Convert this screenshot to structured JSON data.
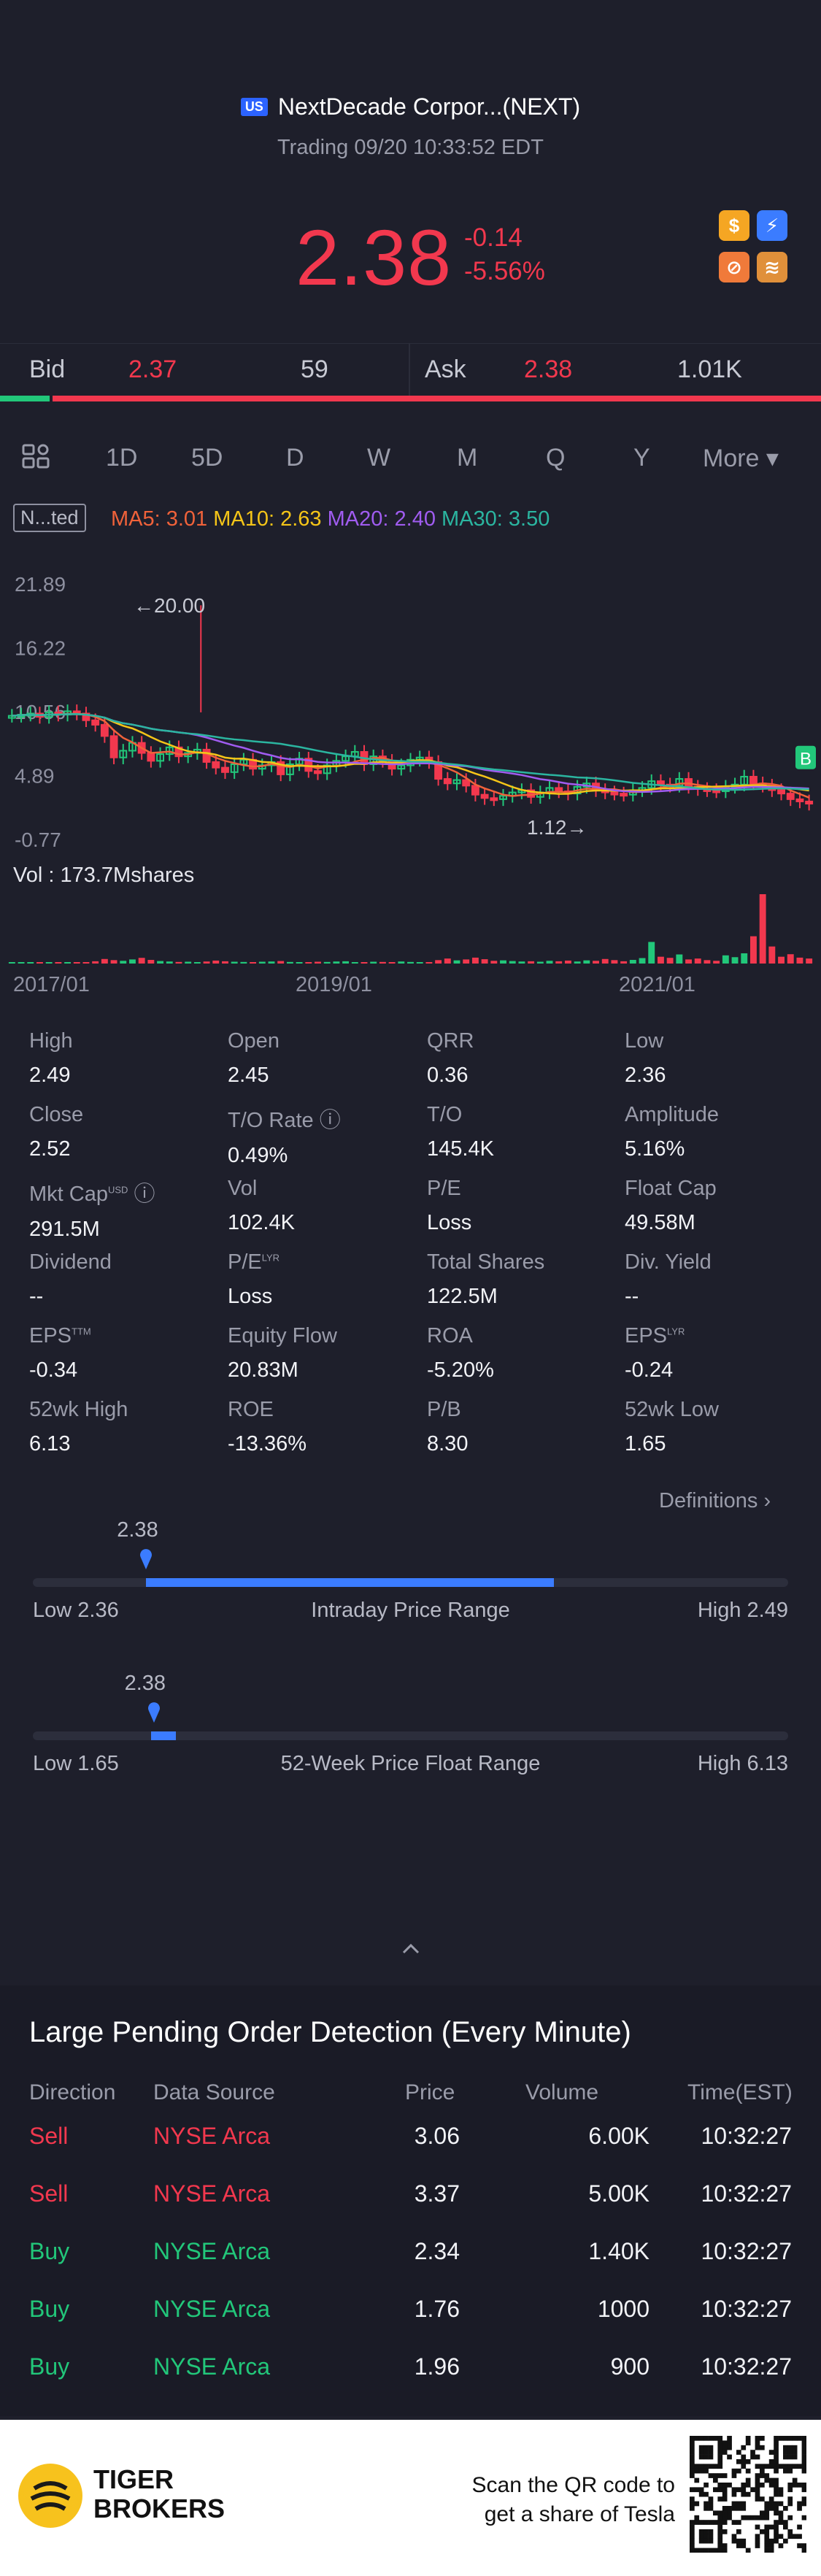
{
  "header": {
    "market_flag": "US",
    "name": "NextDecade Corpor...(NEXT)",
    "status": "Trading 09/20 10:33:52 EDT",
    "price": "2.38",
    "change": "-0.14",
    "change_pct": "-5.56%"
  },
  "quote_icons": [
    "dollar-icon",
    "flash-icon",
    "chart-badge-icon",
    "layers-icon"
  ],
  "bidask": {
    "bid_label": "Bid",
    "bid_price": "2.37",
    "bid_size": "59",
    "ask_label": "Ask",
    "ask_price": "2.38",
    "ask_size": "1.01K",
    "bid_ratio": 0.06
  },
  "tabs": [
    "1D",
    "5D",
    "D",
    "W",
    "M",
    "Q",
    "Y",
    "More ▾"
  ],
  "active_tab": "M",
  "indicator": {
    "toggle": "N...ted",
    "ma5": "MA5: 3.01",
    "ma10": "MA10: 2.63",
    "ma20": "MA20: 2.40",
    "ma30": "MA30: 3.50"
  },
  "chart_data": {
    "type": "candlestick",
    "y_ticks": [
      "21.89",
      "16.22",
      "10.56",
      "4.89",
      "-0.77"
    ],
    "x_ticks": [
      "2017/01",
      "2019/01",
      "2021/01"
    ],
    "ylim": [
      -0.77,
      21.89
    ],
    "high_marker": "20.00",
    "low_marker": "1.12",
    "last_badge": "B",
    "volume_label": "Vol  : 173.7Mshares",
    "close_series": [
      10.2,
      10.3,
      10.4,
      10.1,
      10.5,
      10.3,
      10.6,
      10.4,
      9.8,
      9.4,
      8.4,
      6.5,
      7.1,
      7.8,
      6.9,
      6.2,
      6.8,
      7.4,
      6.6,
      6.9,
      7.2,
      6.1,
      5.6,
      5.2,
      5.9,
      6.3,
      5.5,
      5.8,
      6.1,
      5.0,
      5.9,
      6.4,
      5.3,
      5.1,
      5.8,
      6.2,
      6.6,
      7.0,
      5.9,
      6.6,
      6.2,
      5.5,
      5.8,
      6.3,
      6.5,
      6.1,
      4.6,
      4.2,
      4.5,
      4.0,
      3.2,
      2.9,
      2.8,
      3.1,
      3.4,
      3.6,
      3.0,
      3.4,
      3.8,
      3.5,
      3.3,
      3.9,
      4.2,
      3.6,
      3.4,
      3.3,
      3.2,
      3.6,
      3.8,
      4.4,
      4.1,
      4.0,
      4.6,
      3.9,
      3.7,
      3.6,
      3.5,
      3.9,
      4.1,
      4.8,
      4.2,
      4.0,
      3.6,
      3.3,
      2.8,
      2.6,
      2.4
    ],
    "volumes": [
      0.3,
      0.2,
      0.4,
      0.3,
      0.5,
      0.3,
      0.2,
      0.4,
      0.6,
      1,
      2,
      1.5,
      1.2,
      1.8,
      2.5,
      1.6,
      1.1,
      0.9,
      0.7,
      0.8,
      0.6,
      0.9,
      1.3,
      1.0,
      0.8,
      0.7,
      0.6,
      0.8,
      0.9,
      1.1,
      0.7,
      0.6,
      0.5,
      0.8,
      0.7,
      0.9,
      1.0,
      0.6,
      0.5,
      0.8,
      0.7,
      0.6,
      0.9,
      0.7,
      0.5,
      0.6,
      1.5,
      2.2,
      1.4,
      1.8,
      2.6,
      1.9,
      1.2,
      1.4,
      1.1,
      0.9,
      1.0,
      0.8,
      1.2,
      1.0,
      1.3,
      0.9,
      1.4,
      1.2,
      2.0,
      1.5,
      1.0,
      1.6,
      2.4,
      9.5,
      3.0,
      2.5,
      4.0,
      1.8,
      2.2,
      1.5,
      1.2,
      3.6,
      2.8,
      4.5,
      12.0,
      30.5,
      7.5,
      3.0,
      4.1,
      2.6,
      2.2
    ]
  },
  "stats": [
    {
      "label": "High",
      "value": "2.49"
    },
    {
      "label": "Open",
      "value": "2.45"
    },
    {
      "label": "QRR",
      "value": "0.36"
    },
    {
      "label": "Low",
      "value": "2.36"
    },
    {
      "label": "Close",
      "value": "2.52"
    },
    {
      "label": "T/O Rate",
      "value": "0.49%"
    },
    {
      "label": "T/O",
      "value": "145.4K"
    },
    {
      "label": "Amplitude",
      "value": "5.16%"
    },
    {
      "label": "Mkt Cap",
      "value": "291.5M",
      "sup": "USD"
    },
    {
      "label": "Vol",
      "value": "102.4K"
    },
    {
      "label": "P/E",
      "value": "Loss"
    },
    {
      "label": "Float Cap",
      "value": "49.58M"
    },
    {
      "label": "Dividend",
      "value": "--"
    },
    {
      "label": "P/E",
      "value": "Loss",
      "sup": "LYR"
    },
    {
      "label": "Total Shares",
      "value": "122.5M"
    },
    {
      "label": "Div. Yield",
      "value": "--"
    },
    {
      "label": "EPS",
      "value": "-0.34",
      "sup": "TTM"
    },
    {
      "label": "Equity Flow",
      "value": "20.83M"
    },
    {
      "label": "ROA",
      "value": "-5.20%"
    },
    {
      "label": "EPS",
      "value": "-0.24",
      "sup": "LYR"
    },
    {
      "label": "52wk High",
      "value": "6.13"
    },
    {
      "label": "ROE",
      "value": "-13.36%"
    },
    {
      "label": "P/B",
      "value": "8.30"
    },
    {
      "label": "52wk Low",
      "value": "1.65"
    }
  ],
  "definitions_link": "Definitions",
  "intraday_range": {
    "current": "2.38",
    "low": "Low 2.36",
    "high": "High 2.49",
    "title": "Intraday Price Range",
    "marker_pos": 0.15,
    "fill_end": 0.69
  },
  "week52_range": {
    "current": "2.38",
    "low": "Low 1.65",
    "high": "High 6.13",
    "title": "52-Week Price Float Range",
    "marker_pos": 0.16
  },
  "detection": {
    "title": "Large Pending Order Detection (Every Minute)",
    "columns": [
      "Direction",
      "Data Source",
      "Price",
      "Volume",
      "Time(EST)"
    ],
    "rows": [
      {
        "dir": "Sell",
        "src": "NYSE Arca",
        "price": "3.06",
        "vol": "6.00K",
        "time": "10:32:27"
      },
      {
        "dir": "Sell",
        "src": "NYSE Arca",
        "price": "3.37",
        "vol": "5.00K",
        "time": "10:32:27"
      },
      {
        "dir": "Buy",
        "src": "NYSE Arca",
        "price": "2.34",
        "vol": "1.40K",
        "time": "10:32:27"
      },
      {
        "dir": "Buy",
        "src": "NYSE Arca",
        "price": "1.76",
        "vol": "1000",
        "time": "10:32:27"
      },
      {
        "dir": "Buy",
        "src": "NYSE Arca",
        "price": "1.96",
        "vol": "900",
        "time": "10:32:27"
      }
    ]
  },
  "footer": {
    "brand_line1": "TIGER",
    "brand_line2": "BROKERS",
    "qr_text_1": "Scan the QR code to",
    "qr_text_2": "get a share of Tesla"
  },
  "colors": {
    "up": "#22c77a",
    "down": "#f2384e",
    "accent": "#3b7cff",
    "ma5": "#f0623a",
    "ma10": "#f5c518",
    "ma20": "#a05cf0",
    "ma30": "#2bb5a0"
  }
}
